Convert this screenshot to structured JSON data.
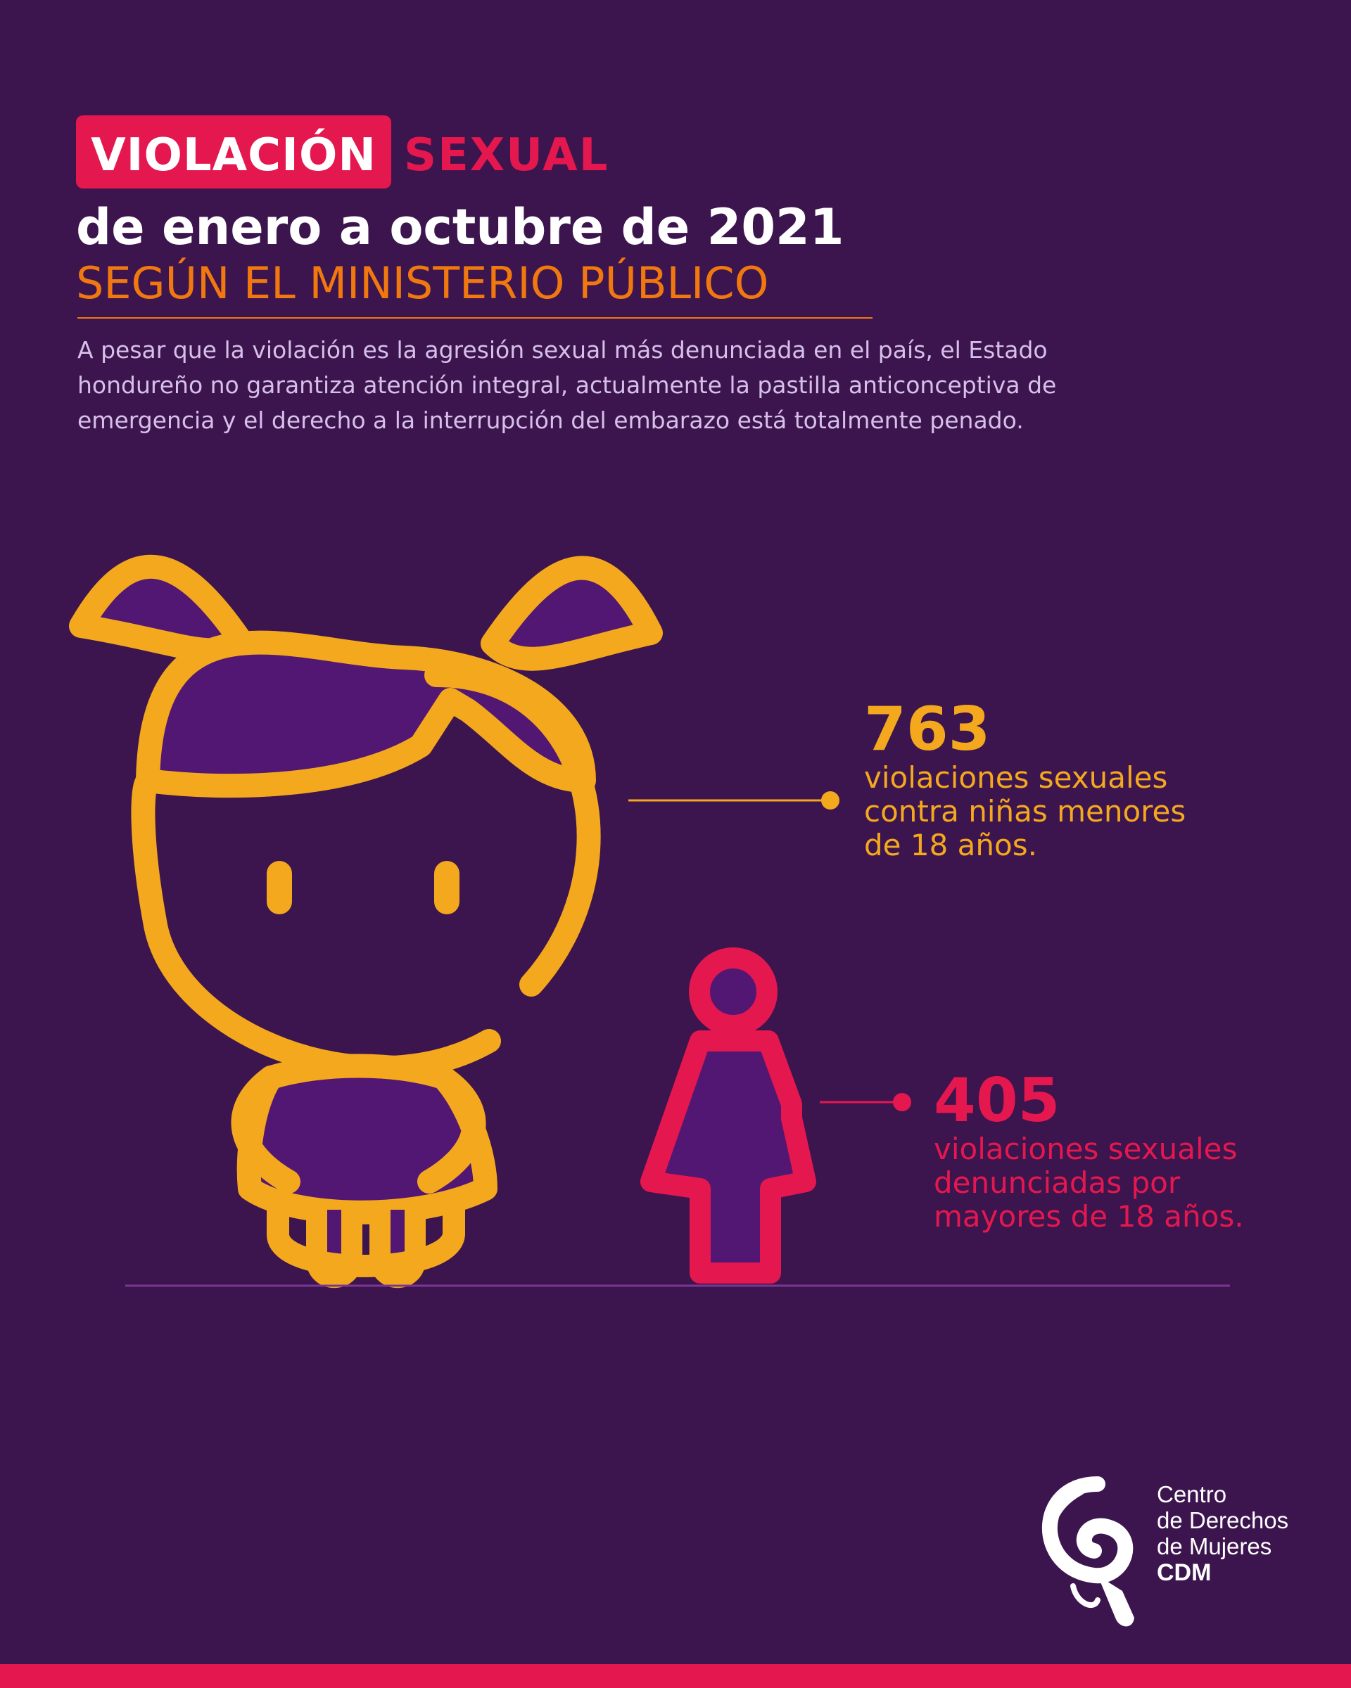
{
  "title": {
    "highlight": "VIOLACIÓN",
    "rest": "SEXUAL",
    "subtitle": "de enero a octubre de 2021",
    "source": "SEGÚN EL MINISTERIO PÚBLICO"
  },
  "intro": "A pesar que la violación es la agresión sexual más denunciada en el país, el Estado hondureño no garantiza atención integral, actualmente la pastilla anticonceptiva de emergencia y el derecho a la interrupción del embarazo está totalmente penado.",
  "stats": {
    "girls": {
      "number": "763",
      "line1": "violaciones sexuales",
      "line2": "contra niñas menores",
      "line3": "de 18 años."
    },
    "adults": {
      "number": "405",
      "line1": "violaciones sexuales",
      "line2": "denunciadas por",
      "line3": "mayores de 18 años."
    }
  },
  "logo": {
    "line1": "Centro",
    "line2": "de Derechos",
    "line3": "de Mujeres",
    "abbr": "CDM"
  },
  "colors": {
    "background": "#3c154e",
    "accent_pink": "#e5174f",
    "accent_orange": "#f4a81d",
    "source_orange": "#f0780f",
    "fill_purple": "#521773",
    "intro_text": "#d6bfe8"
  },
  "icons": [
    "girl-icon",
    "woman-icon",
    "cdm-logo-icon"
  ]
}
